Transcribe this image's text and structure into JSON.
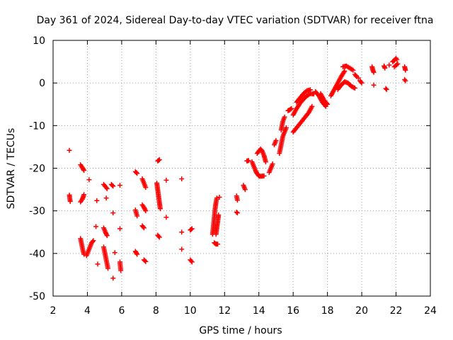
{
  "chart_data": {
    "type": "scatter",
    "title": "Day 361 of 2024, Sidereal Day-to-day VTEC variation (SDTVAR) for receiver ftna",
    "xlabel": "GPS time / hours",
    "ylabel": "SDTVAR / TECUs",
    "xlim": [
      2,
      24
    ],
    "ylim": [
      -50,
      10
    ],
    "x_ticks": [
      "2",
      "4",
      "6",
      "8",
      "10",
      "12",
      "14",
      "16",
      "18",
      "20",
      "22",
      "24"
    ],
    "y_ticks": [
      "10",
      "0",
      "-10",
      "-20",
      "-30",
      "-40",
      "-50"
    ],
    "grid": true,
    "marker": "+",
    "color": "#ff0000",
    "series": [
      {
        "name": "SDTVAR",
        "segments": [
          [
            [
              2.95,
              -15.8
            ]
          ],
          [
            [
              2.95,
              -26.3
            ],
            [
              3.0,
              -27.8
            ]
          ],
          [
            [
              3.6,
              -27.9
            ],
            [
              3.7,
              -27.3
            ],
            [
              3.75,
              -26.8
            ],
            [
              3.8,
              -26.2
            ]
          ],
          [
            [
              3.6,
              -19.2
            ],
            [
              3.7,
              -19.8
            ],
            [
              3.8,
              -20.5
            ]
          ],
          [
            [
              3.6,
              -36.5
            ],
            [
              3.65,
              -37.5
            ],
            [
              3.7,
              -38.5
            ],
            [
              3.75,
              -39.5
            ],
            [
              3.8,
              -40.2
            ]
          ],
          [
            [
              3.95,
              -40.5
            ],
            [
              4.05,
              -39.5
            ],
            [
              4.15,
              -38.5
            ],
            [
              4.25,
              -37.5
            ],
            [
              4.35,
              -37.0
            ]
          ],
          [
            [
              4.1,
              -22.7
            ]
          ],
          [
            [
              4.5,
              -33.7
            ]
          ],
          [
            [
              4.55,
              -27.6
            ]
          ],
          [
            [
              4.6,
              -42.5
            ]
          ],
          [
            [
              4.95,
              -23.8
            ],
            [
              5.05,
              -24.3
            ],
            [
              5.15,
              -24.8
            ]
          ],
          [
            [
              4.95,
              -34.0
            ],
            [
              5.05,
              -35.0
            ],
            [
              5.15,
              -35.8
            ]
          ],
          [
            [
              4.95,
              -38.5
            ],
            [
              5.0,
              -39.5
            ],
            [
              5.05,
              -40.5
            ],
            [
              5.1,
              -41.5
            ],
            [
              5.15,
              -42.5
            ],
            [
              5.2,
              -43.5
            ]
          ],
          [
            [
              5.1,
              -27.0
            ]
          ],
          [
            [
              5.4,
              -23.8
            ],
            [
              5.5,
              -24.2
            ]
          ],
          [
            [
              5.5,
              -30.5
            ]
          ],
          [
            [
              5.5,
              -45.8
            ]
          ],
          [
            [
              5.6,
              -39.8
            ]
          ],
          [
            [
              5.9,
              -24.0
            ]
          ],
          [
            [
              5.9,
              -34.2
            ]
          ],
          [
            [
              5.9,
              -42.0
            ],
            [
              5.92,
              -43.0
            ],
            [
              5.95,
              -44.0
            ]
          ],
          [
            [
              6.8,
              -20.8
            ],
            [
              6.9,
              -21.2
            ]
          ],
          [
            [
              6.8,
              -29.8
            ],
            [
              6.85,
              -30.5
            ],
            [
              6.9,
              -31.2
            ]
          ],
          [
            [
              6.8,
              -39.5
            ],
            [
              6.9,
              -40.2
            ]
          ],
          [
            [
              7.2,
              -22.5
            ],
            [
              7.3,
              -23.5
            ],
            [
              7.4,
              -24.5
            ]
          ],
          [
            [
              7.2,
              -28.6
            ],
            [
              7.3,
              -29.2
            ],
            [
              7.4,
              -30.0
            ]
          ],
          [
            [
              7.2,
              -33.5
            ],
            [
              7.3,
              -34.0
            ]
          ],
          [
            [
              7.3,
              -41.5
            ],
            [
              7.4,
              -41.9
            ]
          ],
          [
            [
              8.1,
              -18.3
            ],
            [
              8.2,
              -18.0
            ]
          ],
          [
            [
              8.05,
              -23.5
            ],
            [
              8.1,
              -25.0
            ],
            [
              8.15,
              -26.5
            ],
            [
              8.2,
              -28.0
            ],
            [
              8.25,
              -29.5
            ]
          ],
          [
            [
              8.1,
              -35.7
            ],
            [
              8.2,
              -36.2
            ]
          ],
          [
            [
              8.6,
              -22.8
            ]
          ],
          [
            [
              8.6,
              -31.5
            ]
          ],
          [
            [
              9.5,
              -22.5
            ]
          ],
          [
            [
              9.5,
              -35.0
            ]
          ],
          [
            [
              9.5,
              -39.0
            ]
          ],
          [
            [
              10.0,
              -34.5
            ],
            [
              10.1,
              -34.2
            ]
          ],
          [
            [
              10.0,
              -41.5
            ],
            [
              10.1,
              -42.0
            ]
          ],
          [
            [
              11.3,
              -35.5
            ],
            [
              11.35,
              -33.5
            ],
            [
              11.4,
              -31.5
            ],
            [
              11.45,
              -29.5
            ],
            [
              11.5,
              -28.0
            ],
            [
              11.55,
              -27.0
            ]
          ],
          [
            [
              11.4,
              -37.5
            ],
            [
              11.5,
              -37.8
            ],
            [
              11.6,
              -37.8
            ]
          ],
          [
            [
              11.5,
              -35.5
            ],
            [
              11.55,
              -34.0
            ],
            [
              11.6,
              -32.5
            ],
            [
              11.65,
              -31.0
            ]
          ],
          [
            [
              11.7,
              -26.8
            ]
          ],
          [
            [
              12.7,
              -26.5
            ],
            [
              12.75,
              -27.5
            ]
          ],
          [
            [
              12.7,
              -30.3
            ],
            [
              12.75,
              -30.5
            ]
          ],
          [
            [
              13.1,
              -24.0
            ],
            [
              13.2,
              -25.0
            ]
          ],
          [
            [
              13.3,
              -18.3
            ],
            [
              13.4,
              -18.2
            ]
          ],
          [
            [
              13.6,
              -18.5
            ],
            [
              13.7,
              -19.5
            ],
            [
              13.8,
              -20.5
            ],
            [
              13.9,
              -21.3
            ],
            [
              14.0,
              -21.8
            ],
            [
              14.1,
              -21.9
            ],
            [
              14.3,
              -21.8
            ]
          ],
          [
            [
              13.9,
              -16.5
            ],
            [
              14.0,
              -16.0
            ],
            [
              14.1,
              -15.5
            ],
            [
              14.2,
              -16.0
            ],
            [
              14.3,
              -17.0
            ],
            [
              14.4,
              -18.5
            ]
          ],
          [
            [
              14.6,
              -21.0
            ],
            [
              14.7,
              -20.0
            ],
            [
              14.8,
              -19.0
            ]
          ],
          [
            [
              14.9,
              -14.5
            ],
            [
              15.0,
              -13.5
            ]
          ],
          [
            [
              15.2,
              -16.5
            ],
            [
              15.3,
              -14.5
            ],
            [
              15.4,
              -12.5
            ],
            [
              15.5,
              -11.5
            ],
            [
              15.6,
              -10.5
            ]
          ],
          [
            [
              15.3,
              -11.0
            ],
            [
              15.4,
              -9.0
            ],
            [
              15.5,
              -8.0
            ]
          ],
          [
            [
              15.7,
              -6.5
            ],
            [
              15.8,
              -6.3
            ],
            [
              15.9,
              -6.0
            ]
          ],
          [
            [
              16.0,
              -7.5
            ],
            [
              16.2,
              -6.0
            ],
            [
              16.4,
              -4.8
            ],
            [
              16.6,
              -3.8
            ],
            [
              16.8,
              -3.0
            ],
            [
              17.0,
              -2.5
            ],
            [
              17.2,
              -2.6
            ]
          ],
          [
            [
              16.0,
              -11.5
            ],
            [
              16.3,
              -10.0
            ],
            [
              16.6,
              -8.5
            ],
            [
              16.9,
              -7.0
            ],
            [
              17.1,
              -5.5
            ]
          ],
          [
            [
              16.2,
              -4.5
            ],
            [
              16.4,
              -3.5
            ],
            [
              16.6,
              -2.5
            ],
            [
              16.8,
              -1.8
            ],
            [
              17.0,
              -1.6
            ]
          ],
          [
            [
              17.3,
              -2.0
            ],
            [
              17.5,
              -3.0
            ],
            [
              17.7,
              -4.5
            ],
            [
              17.9,
              -5.5
            ]
          ],
          [
            [
              17.6,
              -2.5
            ],
            [
              17.8,
              -4.0
            ],
            [
              18.0,
              -5.0
            ]
          ],
          [
            [
              18.2,
              -3.0
            ],
            [
              18.4,
              -1.5
            ],
            [
              18.6,
              0.0
            ],
            [
              18.8,
              1.5
            ],
            [
              19.0,
              2.8
            ]
          ],
          [
            [
              18.9,
              3.8
            ],
            [
              19.1,
              4.0
            ],
            [
              19.3,
              3.5
            ],
            [
              19.5,
              3.0
            ]
          ],
          [
            [
              18.6,
              -1.5
            ],
            [
              18.8,
              -0.5
            ],
            [
              19.0,
              0.3
            ],
            [
              19.2,
              0.0
            ],
            [
              19.4,
              -0.8
            ],
            [
              19.6,
              -1.2
            ]
          ],
          [
            [
              19.8,
              1.2
            ]
          ],
          [
            [
              19.6,
              2.0
            ],
            [
              19.7,
              1.5
            ]
          ],
          [
            [
              19.9,
              0.5
            ],
            [
              20.0,
              0.0
            ]
          ],
          [
            [
              20.6,
              3.8
            ],
            [
              20.65,
              3.0
            ],
            [
              20.7,
              2.5
            ]
          ],
          [
            [
              20.7,
              -0.5
            ]
          ],
          [
            [
              21.3,
              4.0
            ],
            [
              21.35,
              3.5
            ]
          ],
          [
            [
              21.4,
              -1.3
            ],
            [
              21.45,
              -1.5
            ]
          ],
          [
            [
              21.6,
              4.2
            ]
          ],
          [
            [
              21.8,
              5.0
            ],
            [
              21.9,
              5.3
            ],
            [
              22.0,
              5.8
            ],
            [
              22.05,
              5.5
            ]
          ],
          [
            [
              21.9,
              3.8
            ],
            [
              22.1,
              4.5
            ]
          ],
          [
            [
              22.5,
              3.8
            ],
            [
              22.55,
              3.0
            ]
          ],
          [
            [
              22.5,
              0.8
            ],
            [
              22.55,
              0.5
            ]
          ]
        ]
      }
    ]
  }
}
